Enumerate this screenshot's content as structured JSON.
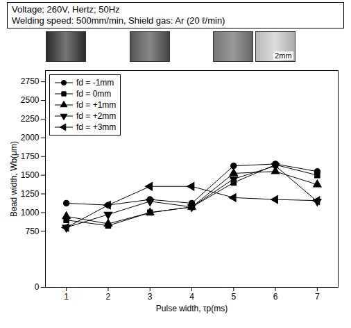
{
  "chart_data": {
    "type": "line",
    "title": "Voltage; 260V, Hertz; 50Hz",
    "subtitle": "Welding speed: 500mm/min, Shield gas: Ar (20 ℓ/min)",
    "annotations": [
      {
        "text": "2mm"
      }
    ],
    "x_label": "Pulse width, τp(ms)",
    "y_label": "Bead width, Wb(μm)",
    "x": [
      1,
      2,
      3,
      4,
      5,
      6,
      7
    ],
    "series": [
      {
        "name": "fd = -1mm",
        "color": "#000000",
        "marker": "circle",
        "values": [
          1125,
          1100,
          1175,
          1125,
          1625,
          1650,
          1550
        ]
      },
      {
        "name": "fd = 0mm",
        "color": "#000000",
        "marker": "square",
        "values": [
          900,
          825,
          1000,
          1075,
          1400,
          1640,
          1500
        ]
      },
      {
        "name": "fd = +1mm",
        "color": "#000000",
        "marker": "triangle-up",
        "values": [
          950,
          850,
          1000,
          1075,
          1525,
          1550,
          1375
        ]
      },
      {
        "name": "fd = +2mm",
        "color": "#000000",
        "marker": "triangle-down",
        "values": [
          800,
          975,
          1150,
          1075,
          1450,
          1625,
          1150
        ]
      },
      {
        "name": "fd = +3mm",
        "color": "#000000",
        "marker": "triangle-left",
        "values": [
          800,
          1100,
          1350,
          1350,
          1200,
          1175,
          1160
        ]
      }
    ],
    "xlim": [
      0.5,
      7.5
    ],
    "ylim": [
      0,
      2900
    ],
    "xticks": [
      1,
      2,
      3,
      4,
      5,
      6,
      7
    ],
    "yticks": [
      0,
      750,
      1000,
      1250,
      1500,
      1750,
      2000,
      2250,
      2500,
      2750
    ],
    "legend": "top-left",
    "grid": false
  }
}
